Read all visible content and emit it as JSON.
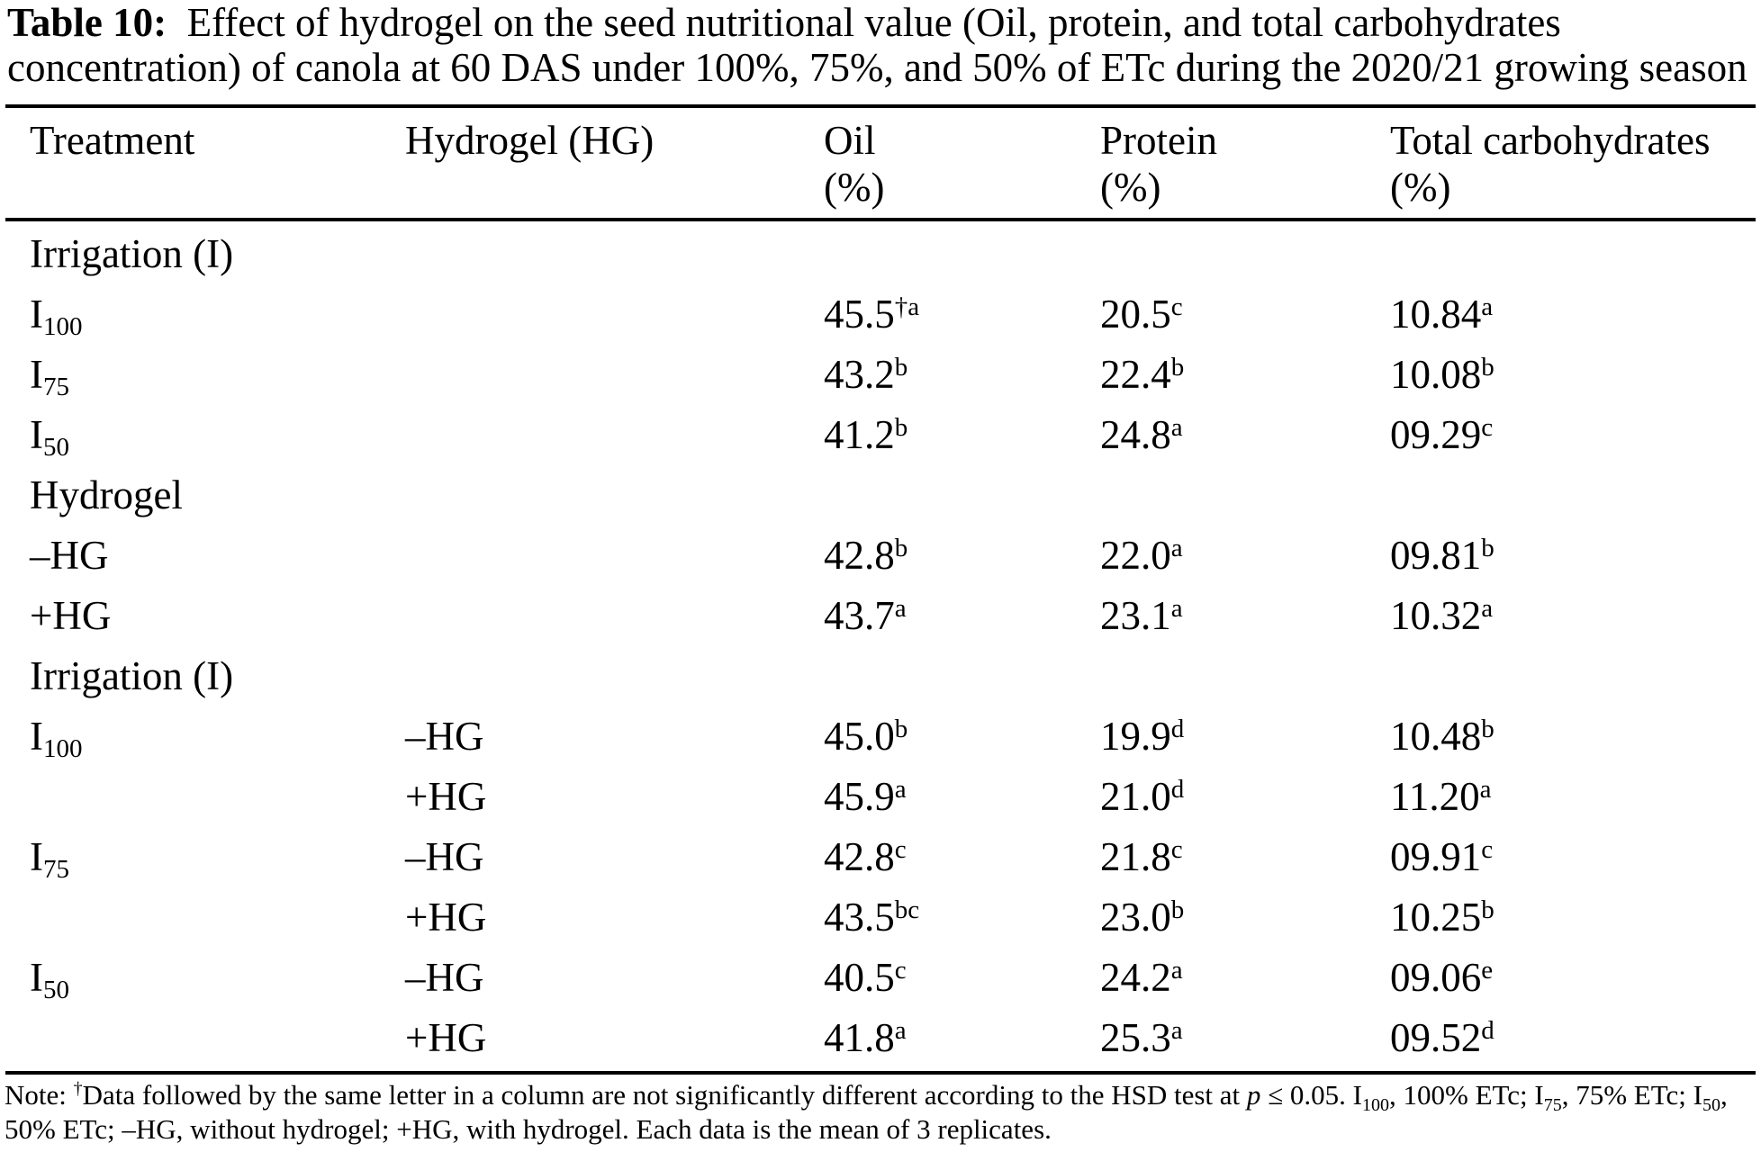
{
  "page": {
    "background": "#ffffff",
    "text_color": "#000000"
  },
  "caption": {
    "segments": [
      {
        "text": "Table 10:",
        "bold": true,
        "name": "caption-label"
      },
      {
        "text": "  Effect of hydrogel on the seed nutritional value (Oil, protein, and total carbohydrates concentration) of canola at 60 DAS under 100%, 75%, and 50% of ETc during the 2020/21 growing season",
        "name": "caption-text"
      }
    ]
  },
  "table": {
    "columns": [
      {
        "label": "Treatment",
        "unit": ""
      },
      {
        "label": "Hydrogel (HG)",
        "unit": ""
      },
      {
        "label": "Oil",
        "unit": "(%)"
      },
      {
        "label": "Protein",
        "unit": "(%)"
      },
      {
        "label": "Total carbohydrates",
        "unit": "(%)"
      }
    ],
    "rows": [
      {
        "type": "section",
        "label": "Irrigation (I)"
      },
      {
        "type": "data",
        "treatment": {
          "base": "I",
          "sub": "100"
        },
        "hydrogel": "",
        "oil": {
          "v": "45.5",
          "s": "†a"
        },
        "protein": {
          "v": "20.5",
          "s": "c"
        },
        "carb": {
          "v": "10.84",
          "s": "a"
        }
      },
      {
        "type": "data",
        "treatment": {
          "base": "I",
          "sub": "75"
        },
        "hydrogel": "",
        "oil": {
          "v": "43.2",
          "s": "b"
        },
        "protein": {
          "v": "22.4",
          "s": "b"
        },
        "carb": {
          "v": "10.08",
          "s": "b"
        }
      },
      {
        "type": "data",
        "treatment": {
          "base": "I",
          "sub": "50"
        },
        "hydrogel": "",
        "oil": {
          "v": "41.2",
          "s": "b"
        },
        "protein": {
          "v": "24.8",
          "s": "a"
        },
        "carb": {
          "v": "09.29",
          "s": "c"
        }
      },
      {
        "type": "section",
        "label": "Hydrogel"
      },
      {
        "type": "data",
        "treatment": {
          "base": "–HG"
        },
        "hydrogel": "",
        "oil": {
          "v": "42.8",
          "s": "b"
        },
        "protein": {
          "v": "22.0",
          "s": "a"
        },
        "carb": {
          "v": "09.81",
          "s": "b"
        }
      },
      {
        "type": "data",
        "treatment": {
          "base": "+HG"
        },
        "hydrogel": "",
        "oil": {
          "v": "43.7",
          "s": "a"
        },
        "protein": {
          "v": "23.1",
          "s": "a"
        },
        "carb": {
          "v": "10.32",
          "s": "a"
        }
      },
      {
        "type": "section",
        "label": "Irrigation (I)"
      },
      {
        "type": "data",
        "treatment": {
          "base": "I",
          "sub": "100"
        },
        "hydrogel": "–HG",
        "oil": {
          "v": "45.0",
          "s": "b"
        },
        "protein": {
          "v": "19.9",
          "s": "d"
        },
        "carb": {
          "v": "10.48",
          "s": "b"
        }
      },
      {
        "type": "data",
        "treatment": {
          "base": ""
        },
        "hydrogel": "+HG",
        "oil": {
          "v": "45.9",
          "s": "a"
        },
        "protein": {
          "v": "21.0",
          "s": "d"
        },
        "carb": {
          "v": "11.20",
          "s": "a"
        }
      },
      {
        "type": "data",
        "treatment": {
          "base": "I",
          "sub": "75"
        },
        "hydrogel": "–HG",
        "oil": {
          "v": "42.8",
          "s": "c"
        },
        "protein": {
          "v": "21.8",
          "s": "c"
        },
        "carb": {
          "v": "09.91",
          "s": "c"
        }
      },
      {
        "type": "data",
        "treatment": {
          "base": ""
        },
        "hydrogel": "+HG",
        "oil": {
          "v": "43.5",
          "s": "bc"
        },
        "protein": {
          "v": "23.0",
          "s": "b"
        },
        "carb": {
          "v": "10.25",
          "s": "b"
        }
      },
      {
        "type": "data",
        "treatment": {
          "base": "I",
          "sub": "50"
        },
        "hydrogel": "–HG",
        "oil": {
          "v": "40.5",
          "s": "c"
        },
        "protein": {
          "v": "24.2",
          "s": "a"
        },
        "carb": {
          "v": "09.06",
          "s": "e"
        }
      },
      {
        "type": "data",
        "treatment": {
          "base": ""
        },
        "hydrogel": "+HG",
        "oil": {
          "v": "41.8",
          "s": "a"
        },
        "protein": {
          "v": "25.3",
          "s": "a"
        },
        "carb": {
          "v": "09.52",
          "s": "d"
        }
      }
    ]
  },
  "note": {
    "segments": [
      {
        "text": "Note: "
      },
      {
        "text": "†",
        "sup": true
      },
      {
        "text": "Data followed by the same letter in a column are not significantly different according to the HSD test at "
      },
      {
        "text": "p",
        "italic": true
      },
      {
        "text": " ≤ 0.05. I"
      },
      {
        "text": "100",
        "sub": true
      },
      {
        "text": ", 100% ETc; I"
      },
      {
        "text": "75",
        "sub": true
      },
      {
        "text": ", 75% ETc; I"
      },
      {
        "text": "50",
        "sub": true
      },
      {
        "text": ", 50% ETc; –HG, without hydrogel; +HG, with hydrogel. Each data is the mean of 3 replicates."
      }
    ]
  }
}
